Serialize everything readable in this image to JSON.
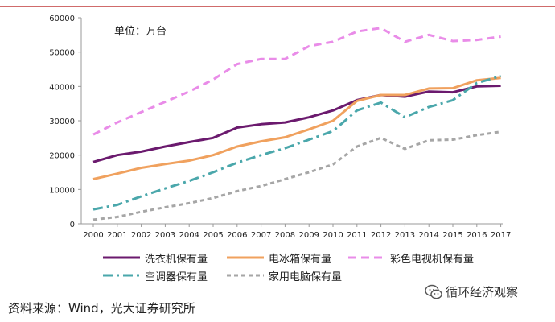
{
  "chart_data": {
    "type": "line",
    "title": "",
    "unit_label": "单位：万台",
    "xlabel": "",
    "ylabel": "",
    "ylim": [
      0,
      60000
    ],
    "yticks": [
      0,
      10000,
      20000,
      30000,
      40000,
      50000,
      60000
    ],
    "categories": [
      "2000",
      "2001",
      "2002",
      "2003",
      "2004",
      "2005",
      "2006",
      "2007",
      "2008",
      "2009",
      "2010",
      "2011",
      "2012",
      "2013",
      "2014",
      "2015",
      "2016",
      "2017"
    ],
    "series": [
      {
        "name": "洗衣机保有量",
        "color": "#6b1a6e",
        "style": "solid",
        "values": [
          18000,
          20000,
          21000,
          22500,
          23800,
          25000,
          28000,
          29000,
          29500,
          31000,
          33000,
          36000,
          37500,
          37000,
          38500,
          38300,
          40000,
          40200
        ]
      },
      {
        "name": "电冰箱保有量",
        "color": "#f0a15e",
        "style": "solid",
        "values": [
          13000,
          14600,
          16300,
          17400,
          18400,
          20000,
          22500,
          24000,
          25200,
          27500,
          30000,
          35800,
          37500,
          37500,
          39400,
          39500,
          41800,
          42500
        ]
      },
      {
        "name": "彩色电视机保有量",
        "color": "#e98ce8",
        "style": "dash",
        "values": [
          26000,
          29500,
          32500,
          35500,
          38500,
          42000,
          46500,
          48000,
          48000,
          51700,
          53000,
          56000,
          57000,
          53000,
          55000,
          53200,
          53500,
          54500
        ]
      },
      {
        "name": "空调器保有量",
        "color": "#4aa7ab",
        "style": "dashdot",
        "values": [
          4200,
          5500,
          8000,
          10300,
          12500,
          15000,
          17800,
          20000,
          22000,
          24500,
          27000,
          33000,
          35300,
          31000,
          34000,
          36000,
          41000,
          43000
        ]
      },
      {
        "name": "家用电脑保有量",
        "color": "#a6a6a6",
        "style": "dash",
        "values": [
          1200,
          2000,
          3500,
          4800,
          6000,
          7500,
          9500,
          11000,
          13000,
          15000,
          17300,
          22500,
          25000,
          21800,
          24300,
          24500,
          25800,
          26800
        ]
      }
    ],
    "legend_position": "bottom"
  },
  "footer": {
    "source": "资料来源：Wind，光大证券研究所",
    "brand": "循环经济观察",
    "brand_icon": "wechat-icon"
  }
}
